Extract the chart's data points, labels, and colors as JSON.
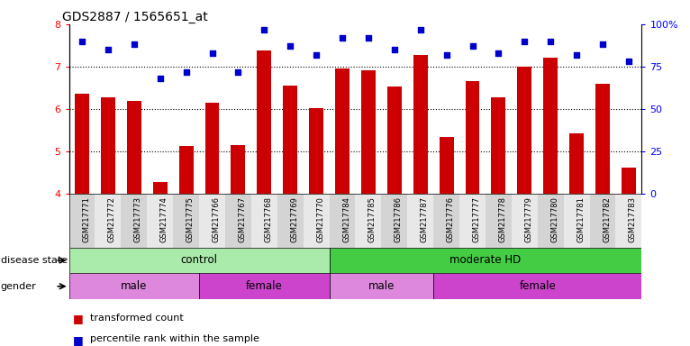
{
  "title": "GDS2887 / 1565651_at",
  "samples": [
    "GSM217771",
    "GSM217772",
    "GSM217773",
    "GSM217774",
    "GSM217775",
    "GSM217766",
    "GSM217767",
    "GSM217768",
    "GSM217769",
    "GSM217770",
    "GSM217784",
    "GSM217785",
    "GSM217786",
    "GSM217787",
    "GSM217776",
    "GSM217777",
    "GSM217778",
    "GSM217779",
    "GSM217780",
    "GSM217781",
    "GSM217782",
    "GSM217783"
  ],
  "bar_values": [
    6.35,
    6.28,
    6.18,
    4.28,
    5.12,
    6.14,
    5.15,
    7.38,
    6.55,
    6.03,
    6.95,
    6.92,
    6.52,
    7.28,
    5.35,
    6.65,
    6.28,
    7.0,
    7.22,
    5.42,
    6.6,
    4.62
  ],
  "percentile_values": [
    90,
    85,
    88,
    68,
    72,
    83,
    72,
    97,
    87,
    82,
    92,
    92,
    85,
    97,
    82,
    87,
    83,
    90,
    90,
    82,
    88,
    78
  ],
  "ylim_left": [
    4,
    8
  ],
  "ylim_right": [
    0,
    100
  ],
  "yticks_left": [
    4,
    5,
    6,
    7,
    8
  ],
  "yticks_right": [
    0,
    25,
    50,
    75,
    100
  ],
  "bar_color": "#cc0000",
  "dot_color": "#0000cc",
  "bar_bottom": 4,
  "disease_state_groups": [
    {
      "label": "control",
      "start": 0,
      "end": 10,
      "color": "#aaeaaa"
    },
    {
      "label": "moderate HD",
      "start": 10,
      "end": 22,
      "color": "#44cc44"
    }
  ],
  "gender_groups": [
    {
      "label": "male",
      "start": 0,
      "end": 5,
      "color": "#dd88dd"
    },
    {
      "label": "female",
      "start": 5,
      "end": 10,
      "color": "#cc44cc"
    },
    {
      "label": "male",
      "start": 10,
      "end": 14,
      "color": "#dd88dd"
    },
    {
      "label": "female",
      "start": 14,
      "end": 22,
      "color": "#cc44cc"
    }
  ],
  "legend_items": [
    {
      "label": "transformed count",
      "color": "#cc0000"
    },
    {
      "label": "percentile rank within the sample",
      "color": "#0000cc"
    }
  ],
  "bg_color": "#ffffff",
  "label_disease_state": "disease state",
  "label_gender": "gender"
}
